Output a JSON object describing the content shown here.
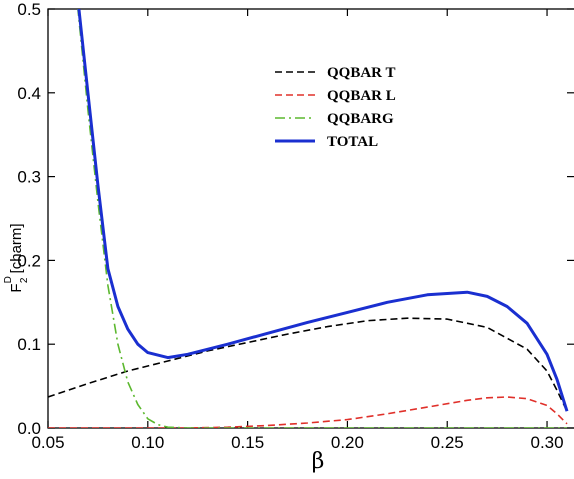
{
  "chart_data": {
    "type": "line",
    "title": "",
    "xlabel": "β",
    "ylabel": {
      "base": "F",
      "sub": "2",
      "sup": "D",
      "rest": " [charm]"
    },
    "xlim": [
      0.05,
      0.31
    ],
    "ylim": [
      0,
      0.5
    ],
    "xticks": [
      "0.05",
      "0.10",
      "0.15",
      "0.20",
      "0.25",
      "0.30"
    ],
    "yticks": [
      "0.0",
      "0.1",
      "0.2",
      "0.3",
      "0.4",
      "0.5"
    ],
    "legend_position": "top-center",
    "series": [
      {
        "name": "QQBAR T",
        "color": "#000000",
        "style": "dashed",
        "x": [
          0.05,
          0.07,
          0.09,
          0.11,
          0.13,
          0.15,
          0.17,
          0.19,
          0.21,
          0.23,
          0.25,
          0.27,
          0.29,
          0.3,
          0.305,
          0.31
        ],
        "y": [
          0.037,
          0.053,
          0.068,
          0.08,
          0.092,
          0.102,
          0.112,
          0.121,
          0.128,
          0.131,
          0.13,
          0.12,
          0.094,
          0.068,
          0.045,
          0.02
        ]
      },
      {
        "name": "QQBAR L",
        "color": "#e0302a",
        "style": "dashed",
        "x": [
          0.05,
          0.12,
          0.14,
          0.16,
          0.18,
          0.2,
          0.22,
          0.24,
          0.26,
          0.27,
          0.28,
          0.29,
          0.3,
          0.305,
          0.31
        ],
        "y": [
          0.0,
          0.0,
          0.001,
          0.003,
          0.006,
          0.01,
          0.017,
          0.025,
          0.033,
          0.036,
          0.037,
          0.035,
          0.027,
          0.017,
          0.005
        ]
      },
      {
        "name": "QQBARG",
        "color": "#5cb82f",
        "style": "dashdot",
        "x": [
          0.06,
          0.065,
          0.07,
          0.075,
          0.08,
          0.085,
          0.09,
          0.095,
          0.1,
          0.105,
          0.11,
          0.12,
          0.15,
          0.2,
          0.25,
          0.31
        ],
        "y": [
          0.55,
          0.5,
          0.38,
          0.27,
          0.17,
          0.1,
          0.055,
          0.028,
          0.011,
          0.004,
          0.001,
          0.0,
          0.0,
          0.0,
          0.0,
          0.0
        ]
      },
      {
        "name": "TOTAL",
        "color": "#1a2fd0",
        "style": "solid",
        "x": [
          0.0655,
          0.07,
          0.075,
          0.08,
          0.085,
          0.09,
          0.095,
          0.1,
          0.11,
          0.12,
          0.14,
          0.16,
          0.18,
          0.2,
          0.22,
          0.24,
          0.26,
          0.27,
          0.28,
          0.29,
          0.3,
          0.305,
          0.31
        ],
        "y": [
          0.5,
          0.4,
          0.29,
          0.19,
          0.145,
          0.118,
          0.1,
          0.09,
          0.084,
          0.088,
          0.1,
          0.113,
          0.126,
          0.138,
          0.15,
          0.159,
          0.162,
          0.157,
          0.145,
          0.125,
          0.088,
          0.058,
          0.02
        ]
      }
    ]
  }
}
